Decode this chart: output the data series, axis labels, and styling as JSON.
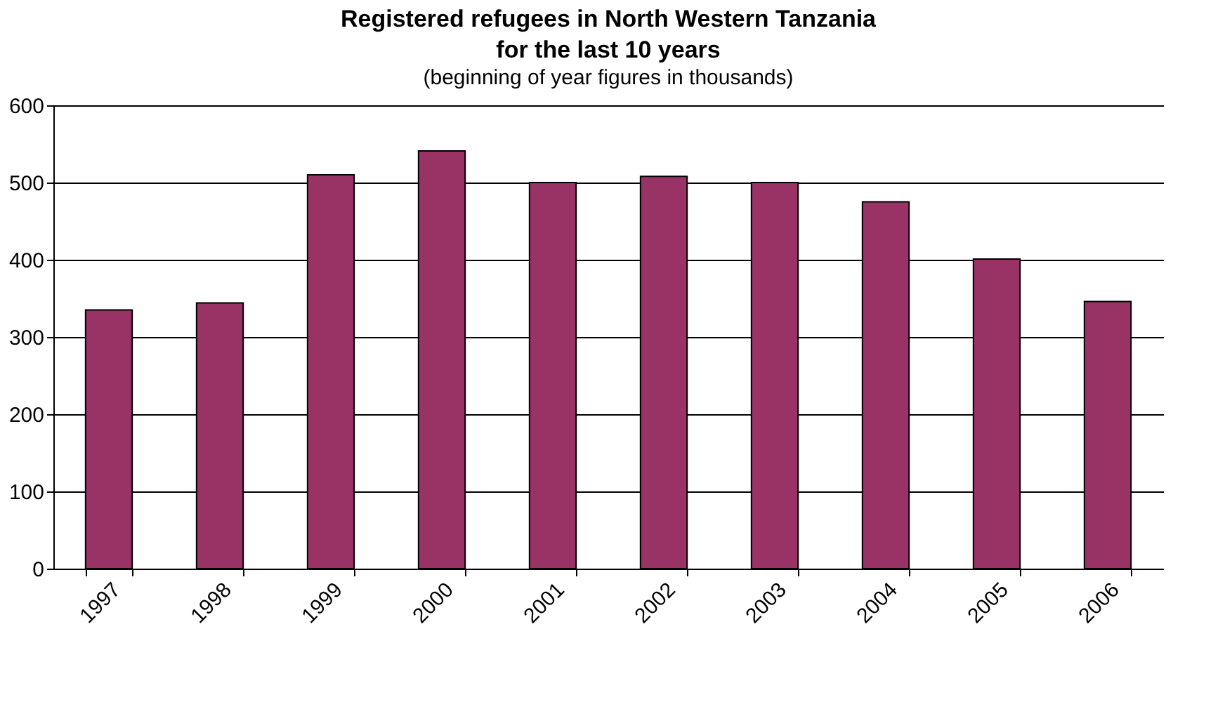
{
  "chart_data": {
    "type": "bar",
    "title": "Registered refugees in North Western Tanzania\nfor the last 10 years",
    "subtitle": "(beginning of year figures in thousands)",
    "categories": [
      "1997",
      "1998",
      "1999",
      "2000",
      "2001",
      "2002",
      "2003",
      "2004",
      "2005",
      "2006"
    ],
    "values": [
      335,
      344,
      510,
      541,
      500,
      508,
      500,
      475,
      401,
      346
    ],
    "color": "#993366",
    "ylim": [
      0,
      600
    ],
    "yticks": [
      0,
      100,
      200,
      300,
      400,
      500,
      600
    ],
    "grid": "y"
  }
}
